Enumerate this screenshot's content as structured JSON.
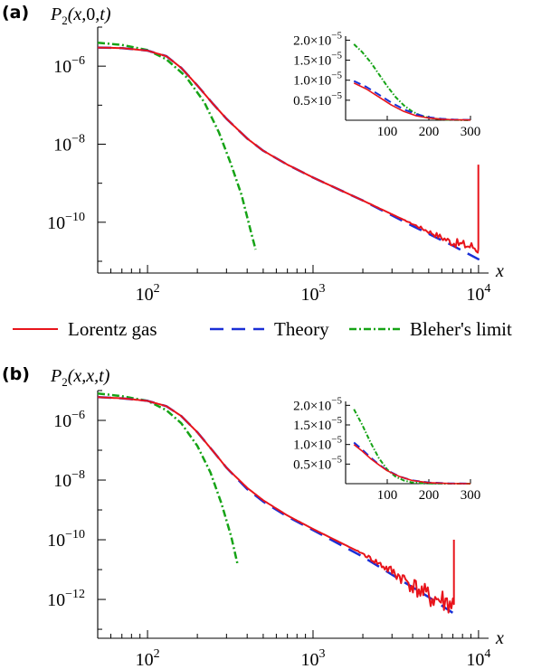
{
  "legend": {
    "items": [
      {
        "label": "Lorentz gas",
        "color": "#e8141b",
        "dash": "solid"
      },
      {
        "label": "Theory",
        "color": "#1a2fd6",
        "dash": "dashed"
      },
      {
        "label": "Bleher's limit",
        "color": "#16a316",
        "dash": "dashdot"
      }
    ]
  },
  "chart_data": [
    {
      "type": "line",
      "panel_label": "(a)",
      "ylabel": "P2(x,0,t)",
      "xlabel": "x",
      "xscale": "log",
      "yscale": "log",
      "xlim": [
        50,
        11500
      ],
      "ylim": [
        5e-12,
        1e-05
      ],
      "xticks": [
        "10^2",
        "10^3",
        "10^4"
      ],
      "yticks": [
        "10^-6",
        "10^-8",
        "10^-10"
      ],
      "series": [
        {
          "name": "Lorentz gas",
          "x": [
            50,
            70,
            100,
            130,
            160,
            200,
            250,
            300,
            400,
            500,
            700,
            1000,
            2000,
            4000,
            7000,
            9500,
            9900
          ],
          "y": [
            3e-06,
            2.9e-06,
            2.5e-06,
            1.8e-06,
            9e-07,
            3.2e-07,
            1.05e-07,
            4.5e-08,
            1.4e-08,
            6.8e-09,
            3e-09,
            1.4e-09,
            3.6e-10,
            9e-11,
            3e-11,
            2.3e-11,
            2.1e-11
          ],
          "spike": {
            "x": 9980,
            "y": 3e-09
          },
          "noise_from": 3500
        },
        {
          "name": "Theory",
          "x": [
            50,
            70,
            100,
            130,
            160,
            200,
            250,
            300,
            400,
            500,
            700,
            1000,
            2000,
            4000,
            7000,
            10100
          ],
          "y": [
            3e-06,
            2.9e-06,
            2.5e-06,
            1.8e-06,
            9e-07,
            3.2e-07,
            1.05e-07,
            4.5e-08,
            1.4e-08,
            6.8e-09,
            3e-09,
            1.4e-09,
            3.6e-10,
            8e-11,
            2.5e-11,
            1.1e-11
          ]
        },
        {
          "name": "Bleher's limit",
          "x": [
            50,
            70,
            100,
            130,
            170,
            220,
            270,
            320,
            370,
            420,
            450
          ],
          "y": [
            4e-06,
            3.5e-06,
            2.6e-06,
            1.5e-06,
            5.5e-07,
            1.2e-07,
            2e-08,
            3e-09,
            5e-10,
            6e-11,
            2e-11
          ]
        }
      ],
      "inset": {
        "xlim": [
          0,
          300
        ],
        "ylim": [
          0,
          2.1e-05
        ],
        "xticks": [
          "100",
          "200",
          "300"
        ],
        "yticks": [
          "0.5×10^-5",
          "1.0×10^-5",
          "1.5×10^-5",
          "2.0×10^-5"
        ],
        "series": [
          {
            "name": "Lorentz gas",
            "x": [
              20,
              50,
              80,
              110,
              140,
              170,
              200,
              230,
              260,
              300
            ],
            "y": [
              9.3e-06,
              7.8e-06,
              5.8e-06,
              3.8e-06,
              2.2e-06,
              1.1e-06,
              5.5e-07,
              2.5e-07,
              1.2e-07,
              6e-08
            ]
          },
          {
            "name": "Theory",
            "x": [
              20,
              50,
              80,
              110,
              140,
              170,
              200,
              230,
              260,
              300
            ],
            "y": [
              9.8e-06,
              8.3e-06,
              6.4e-06,
              4.4e-06,
              2.7e-06,
              1.5e-06,
              7.5e-07,
              3.5e-07,
              1.6e-07,
              6e-08
            ]
          },
          {
            "name": "Bleher's limit",
            "x": [
              20,
              40,
              60,
              80,
              100,
              120,
              140,
              160,
              180,
              200,
              230,
              260,
              300
            ],
            "y": [
              1.9e-05,
              1.7e-05,
              1.45e-05,
              1.15e-05,
              8.5e-06,
              5.8e-06,
              3.7e-06,
              2.2e-06,
              1.2e-06,
              6e-07,
              2e-07,
              6e-08,
              1e-08
            ]
          }
        ]
      }
    },
    {
      "type": "line",
      "panel_label": "(b)",
      "ylabel": "P2(x,x,t)",
      "xlabel": "x",
      "xscale": "log",
      "yscale": "log",
      "xlim": [
        50,
        11500
      ],
      "ylim": [
        5e-14,
        1e-05
      ],
      "xticks": [
        "10^2",
        "10^3",
        "10^4"
      ],
      "yticks": [
        "10^-6",
        "10^-8",
        "10^-10",
        "10^-12"
      ],
      "series": [
        {
          "name": "Lorentz gas",
          "x": [
            50,
            70,
            100,
            130,
            160,
            200,
            250,
            300,
            400,
            500,
            700,
            1000,
            2000,
            3500,
            5000,
            7000
          ],
          "y": [
            6e-06,
            5.5e-06,
            4.5e-06,
            3e-06,
            1.4e-06,
            4e-07,
            9e-08,
            2.6e-08,
            5.5e-09,
            2.1e-09,
            6.5e-10,
            2.3e-10,
            3.4e-11,
            5e-12,
            1.2e-12,
            7e-13
          ],
          "spike": {
            "x": 7100,
            "y": 1e-10
          },
          "noise_from": 1800
        },
        {
          "name": "Theory",
          "x": [
            50,
            70,
            100,
            130,
            160,
            200,
            250,
            300,
            400,
            500,
            700,
            1000,
            2000,
            3500,
            5000,
            7200
          ],
          "y": [
            6e-06,
            5.5e-06,
            4.5e-06,
            3e-06,
            1.4e-06,
            4e-07,
            9e-08,
            2.6e-08,
            5e-09,
            1.9e-09,
            6e-10,
            2.1e-10,
            2.7e-11,
            4e-12,
            1.2e-12,
            3.2e-13
          ]
        },
        {
          "name": "Bleher's limit",
          "x": [
            50,
            70,
            100,
            130,
            160,
            200,
            240,
            280,
            320,
            350
          ],
          "y": [
            8e-06,
            6.5e-06,
            4.5e-06,
            2.2e-06,
            8e-07,
            1.4e-07,
            1.8e-08,
            1.6e-09,
            1.3e-10,
            1.5e-11
          ]
        }
      ],
      "inset": {
        "xlim": [
          0,
          300
        ],
        "ylim": [
          0,
          2.1e-05
        ],
        "xticks": [
          "100",
          "200",
          "300"
        ],
        "yticks": [
          "0.5×10^-5",
          "1.0×10^-5",
          "1.5×10^-5",
          "2.0×10^-5"
        ],
        "series": [
          {
            "name": "Lorentz gas",
            "x": [
              20,
              40,
              60,
              80,
              100,
              130,
              160,
              200,
              250,
              300
            ],
            "y": [
              1e-05,
              8.3e-06,
              6.4e-06,
              4.8e-06,
              3.3e-06,
              1.8e-06,
              8e-07,
              2.5e-07,
              5e-08,
              1e-08
            ]
          },
          {
            "name": "Theory",
            "x": [
              20,
              40,
              60,
              80,
              100,
              130,
              160,
              200,
              250,
              300
            ],
            "y": [
              1.05e-05,
              8.7e-06,
              6.7e-06,
              4.9e-06,
              3.4e-06,
              1.8e-06,
              8.5e-07,
              3e-07,
              7e-08,
              1.5e-08
            ]
          },
          {
            "name": "Bleher's limit",
            "x": [
              20,
              40,
              60,
              80,
              100,
              120,
              140,
              160,
              200,
              250,
              300
            ],
            "y": [
              1.9e-05,
              1.5e-05,
              1.05e-05,
              6.5e-06,
              3.6e-06,
              1.8e-06,
              8e-07,
              3e-07,
              4e-08,
              3e-09,
              1e-10
            ]
          }
        ]
      }
    }
  ]
}
